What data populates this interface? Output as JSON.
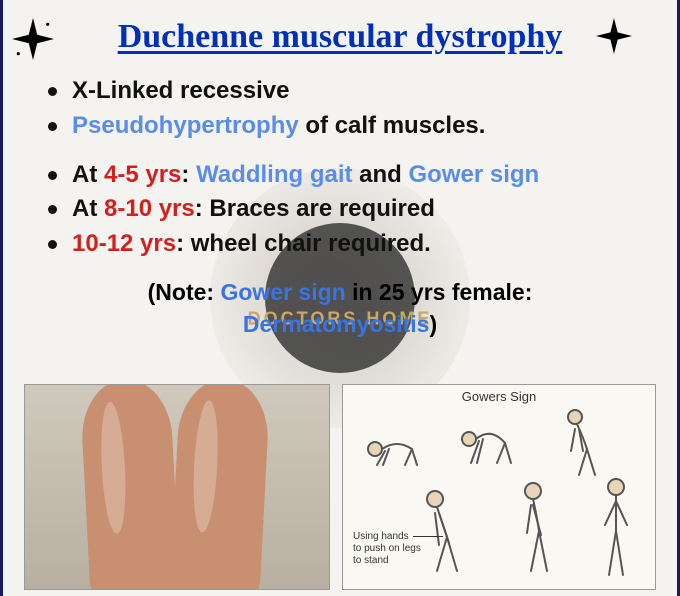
{
  "title": "Duchenne muscular dystrophy",
  "watermark_text": "DOCTORS HOME",
  "colors": {
    "title": "#0030b8",
    "blue_accent": "#5a8de8",
    "red_accent": "#d02020",
    "text": "#111111",
    "border": "#1a1a5e",
    "background": "#f5f3f0",
    "watermark_circle": "#3a3a3a",
    "watermark_text": "#c9a865"
  },
  "block1": [
    {
      "segments": [
        {
          "t": "X-Linked recessive",
          "c": "text"
        }
      ]
    },
    {
      "segments": [
        {
          "t": "Pseudohypertrophy",
          "c": "blue"
        },
        {
          "t": " of calf muscles.",
          "c": "text"
        }
      ]
    }
  ],
  "block2": [
    {
      "segments": [
        {
          "t": "At ",
          "c": "text"
        },
        {
          "t": "4-5 yrs",
          "c": "red"
        },
        {
          "t": ": ",
          "c": "text"
        },
        {
          "t": "Waddling gait",
          "c": "blue"
        },
        {
          "t": " and ",
          "c": "text"
        },
        {
          "t": "Gower sign",
          "c": "blue"
        }
      ]
    },
    {
      "segments": [
        {
          "t": "At ",
          "c": "text"
        },
        {
          "t": "8-10 yrs",
          "c": "red"
        },
        {
          "t": ": Braces are required",
          "c": "text"
        }
      ]
    },
    {
      "segments": [
        {
          "t": "10-12 yrs",
          "c": "red"
        },
        {
          "t": ": wheel chair required.",
          "c": "text"
        }
      ]
    }
  ],
  "note": {
    "segments": [
      {
        "t": "(Note: ",
        "c": "text"
      },
      {
        "t": "Gower sign",
        "c": "blue"
      },
      {
        "t": " in 25 yrs female: ",
        "c": "text"
      },
      {
        "t": "Dermatomyositis",
        "c": "blue"
      },
      {
        "t": ")",
        "c": "text"
      }
    ]
  },
  "gowers_panel": {
    "title": "Gowers Sign",
    "caption_lines": [
      "Using hands",
      "to push on legs",
      "to stand"
    ]
  }
}
